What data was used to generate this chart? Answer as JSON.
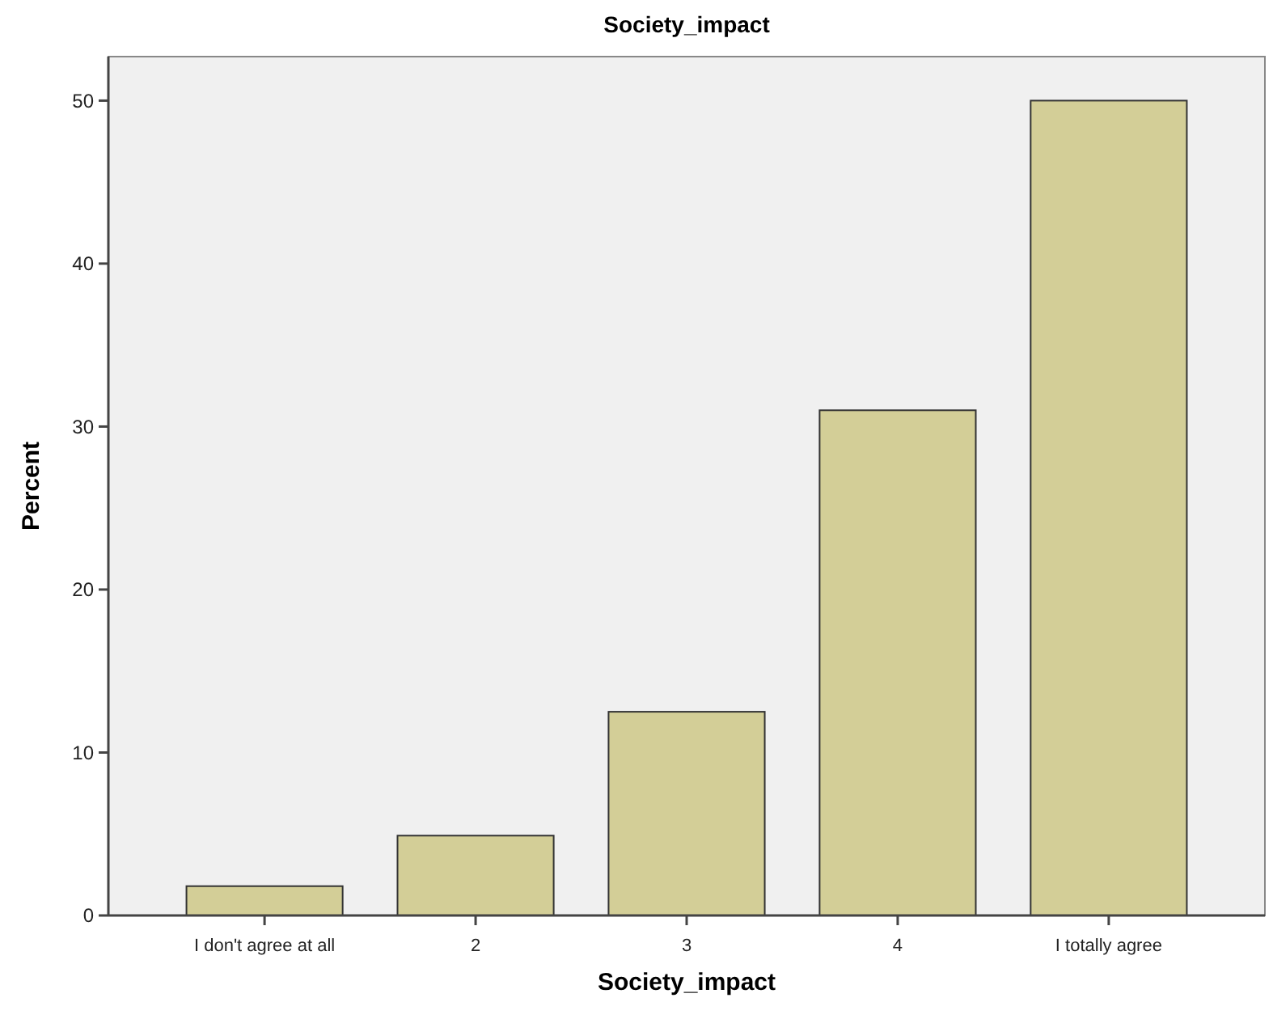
{
  "chart_data": {
    "type": "bar",
    "title": "Society_impact",
    "xlabel": "Society_impact",
    "ylabel": "Percent",
    "categories": [
      "I don't agree at all",
      "2",
      "3",
      "4",
      "I totally agree"
    ],
    "values": [
      1.8,
      4.9,
      12.5,
      31.0,
      50.0
    ],
    "color": "#d3ce97",
    "ylim": [
      0,
      52.7
    ],
    "yticks": [
      0,
      10,
      20,
      30,
      40,
      50
    ],
    "grid": false
  }
}
